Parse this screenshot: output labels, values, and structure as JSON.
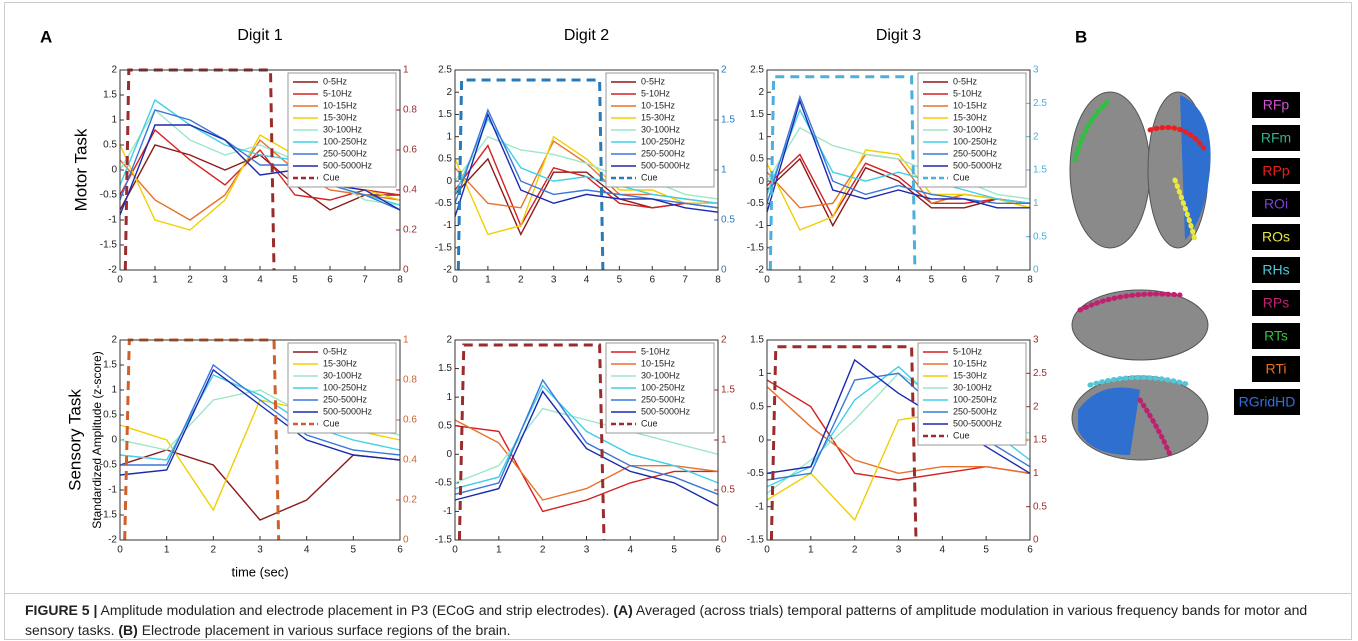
{
  "panel_labels": {
    "a": "A",
    "b": "B"
  },
  "row_labels": {
    "motor": "Motor Task",
    "sensory": "Sensory Task"
  },
  "chart_data": [
    {
      "type": "line",
      "title": "Digit 1",
      "x": [
        0,
        1,
        2,
        3,
        4,
        5,
        6,
        7,
        8
      ],
      "xlim": [
        0,
        8
      ],
      "xticks": [
        0,
        1,
        2,
        3,
        4,
        5,
        6,
        7,
        8
      ],
      "ylim": [
        -2,
        2
      ],
      "yticks": [
        -2,
        -1.5,
        -1,
        -0.5,
        0,
        0.5,
        1,
        1.5,
        2
      ],
      "y2lim": [
        0,
        1
      ],
      "y2ticks": [
        0,
        0.2,
        0.4,
        0.6,
        0.8,
        1
      ],
      "y2color": "#9b2c2c",
      "grid": false,
      "series": [
        {
          "name": "0-5Hz",
          "color": "#8b1a1a",
          "values": [
            -0.8,
            0.5,
            0.3,
            0,
            0.3,
            -0.3,
            -0.8,
            -0.5,
            -0.5
          ]
        },
        {
          "name": "5-10Hz",
          "color": "#d62020",
          "values": [
            -0.5,
            0.8,
            0.2,
            -0.3,
            0.4,
            -0.5,
            -0.6,
            -0.4,
            -0.5
          ]
        },
        {
          "name": "10-15Hz",
          "color": "#e8702a",
          "values": [
            0.2,
            -0.6,
            -1.0,
            -0.5,
            0.6,
            0,
            -0.4,
            -0.5,
            -0.6
          ]
        },
        {
          "name": "15-30Hz",
          "color": "#f0d000",
          "values": [
            0.5,
            -1.0,
            -1.2,
            -0.6,
            0.7,
            0.3,
            -0.3,
            -0.4,
            -0.6
          ]
        },
        {
          "name": "30-100Hz",
          "color": "#9ee6c8",
          "values": [
            0,
            1.2,
            0.6,
            0.3,
            0.5,
            0.2,
            -0.2,
            -0.6,
            -0.7
          ]
        },
        {
          "name": "100-250Hz",
          "color": "#40d0e8",
          "values": [
            -0.3,
            1.4,
            0.9,
            0.5,
            0.3,
            0.2,
            -0.3,
            -0.5,
            -0.7
          ]
        },
        {
          "name": "250-500Hz",
          "color": "#3a78d8",
          "values": [
            -0.6,
            1.2,
            1.0,
            0.6,
            0.1,
            0.1,
            -0.3,
            -0.5,
            -0.8
          ]
        },
        {
          "name": "500-5000Hz",
          "color": "#1a2ab0",
          "values": [
            -0.9,
            0.9,
            0.9,
            0.6,
            -0.1,
            0,
            -0.3,
            -0.4,
            -0.8
          ]
        },
        {
          "name": "Cue",
          "color": "#9b2c2c",
          "axis": "y2",
          "dashed": true,
          "x": [
            0.15,
            0.25,
            4.3,
            4.4
          ],
          "values": [
            0,
            1,
            1,
            0
          ]
        }
      ]
    },
    {
      "type": "line",
      "title": "Digit 2",
      "x": [
        0,
        1,
        2,
        3,
        4,
        5,
        6,
        7,
        8
      ],
      "xlim": [
        0,
        8
      ],
      "xticks": [
        0,
        1,
        2,
        3,
        4,
        5,
        6,
        7,
        8
      ],
      "ylim": [
        -2,
        2.5
      ],
      "yticks": [
        -2,
        -1.5,
        -1,
        -0.5,
        0,
        0.5,
        1,
        1.5,
        2,
        2.5
      ],
      "y2lim": [
        0,
        2
      ],
      "y2ticks": [
        0,
        0.5,
        1,
        1.5,
        2
      ],
      "y2color": "#2a7ab8",
      "grid": false,
      "series": [
        {
          "name": "0-5Hz",
          "color": "#8b1a1a",
          "values": [
            -0.3,
            0.5,
            -1.2,
            0.2,
            0.2,
            -0.4,
            -0.6,
            -0.5,
            -0.6
          ]
        },
        {
          "name": "5-10Hz",
          "color": "#d62020",
          "values": [
            -0.2,
            0.8,
            -1.0,
            0.3,
            0.1,
            -0.5,
            -0.6,
            -0.5,
            -0.5
          ]
        },
        {
          "name": "10-15Hz",
          "color": "#e8702a",
          "values": [
            0.3,
            -0.5,
            -0.6,
            0.9,
            0.4,
            -0.3,
            -0.3,
            -0.4,
            -0.5
          ]
        },
        {
          "name": "15-30Hz",
          "color": "#f0d000",
          "values": [
            0.5,
            -1.2,
            -1.0,
            1.0,
            0.5,
            -0.2,
            -0.2,
            -0.5,
            -0.5
          ]
        },
        {
          "name": "30-100Hz",
          "color": "#9ee6c8",
          "values": [
            0,
            1.0,
            0.7,
            0.6,
            0.4,
            0.1,
            0,
            -0.3,
            -0.4
          ]
        },
        {
          "name": "100-250Hz",
          "color": "#40d0e8",
          "values": [
            -0.3,
            1.4,
            0.3,
            0,
            0.1,
            -0.1,
            -0.3,
            -0.4,
            -0.5
          ]
        },
        {
          "name": "250-500Hz",
          "color": "#3a78d8",
          "values": [
            -0.5,
            1.6,
            0,
            -0.3,
            -0.2,
            -0.3,
            -0.4,
            -0.5,
            -0.6
          ]
        },
        {
          "name": "500-5000Hz",
          "color": "#1a2ab0",
          "values": [
            -0.8,
            1.5,
            -0.2,
            -0.5,
            -0.3,
            -0.4,
            -0.4,
            -0.6,
            -0.7
          ]
        },
        {
          "name": "Cue",
          "color": "#2a7ab8",
          "axis": "y2",
          "dashed": true,
          "x": [
            0.1,
            0.2,
            4.4,
            4.5
          ],
          "values": [
            0,
            1.9,
            1.9,
            0
          ]
        }
      ]
    },
    {
      "type": "line",
      "title": "Digit 3",
      "x": [
        0,
        1,
        2,
        3,
        4,
        5,
        6,
        7,
        8
      ],
      "xlim": [
        0,
        8
      ],
      "xticks": [
        0,
        1,
        2,
        3,
        4,
        5,
        6,
        7,
        8
      ],
      "ylim": [
        -2,
        2.5
      ],
      "yticks": [
        -2,
        -1.5,
        -1,
        -0.5,
        0,
        0.5,
        1,
        1.5,
        2,
        2.5
      ],
      "y2lim": [
        0,
        3
      ],
      "y2ticks": [
        0,
        0.5,
        1,
        1.5,
        2,
        2.5,
        3
      ],
      "y2color": "#4ab0e0",
      "grid": false,
      "series": [
        {
          "name": "0-5Hz",
          "color": "#8b1a1a",
          "values": [
            -0.2,
            0.5,
            -1.0,
            0.3,
            0,
            -0.6,
            -0.6,
            -0.4,
            -0.5
          ]
        },
        {
          "name": "5-10Hz",
          "color": "#d62020",
          "values": [
            -0.1,
            0.6,
            -0.8,
            0.4,
            0.1,
            -0.5,
            -0.5,
            -0.4,
            -0.5
          ]
        },
        {
          "name": "10-15Hz",
          "color": "#e8702a",
          "values": [
            0.2,
            -0.6,
            -0.5,
            0.6,
            0.5,
            -0.5,
            -0.3,
            -0.4,
            -0.6
          ]
        },
        {
          "name": "15-30Hz",
          "color": "#f0d000",
          "values": [
            0.4,
            -1.1,
            -0.8,
            0.7,
            0.6,
            -0.3,
            -0.3,
            -0.4,
            -0.6
          ]
        },
        {
          "name": "30-100Hz",
          "color": "#9ee6c8",
          "values": [
            0,
            1.2,
            0.8,
            0.6,
            0.5,
            0.2,
            0,
            -0.3,
            -0.4
          ]
        },
        {
          "name": "100-250Hz",
          "color": "#40d0e8",
          "values": [
            -0.3,
            1.6,
            0.2,
            0,
            0.2,
            0,
            -0.2,
            -0.4,
            -0.5
          ]
        },
        {
          "name": "250-500Hz",
          "color": "#3a78d8",
          "values": [
            -0.5,
            1.9,
            0,
            -0.3,
            -0.1,
            -0.3,
            -0.4,
            -0.5,
            -0.5
          ]
        },
        {
          "name": "500-5000Hz",
          "color": "#1a2ab0",
          "values": [
            -0.7,
            1.8,
            -0.2,
            -0.4,
            -0.2,
            -0.4,
            -0.4,
            -0.6,
            -0.6
          ]
        },
        {
          "name": "Cue",
          "color": "#4ab0e0",
          "axis": "y2",
          "dashed": true,
          "x": [
            0.1,
            0.2,
            4.4,
            4.5
          ],
          "values": [
            0,
            2.9,
            2.9,
            0
          ]
        }
      ]
    },
    {
      "type": "line",
      "ylabel": "Standardized Amplitude (z-score)",
      "xlabel": "time (sec)",
      "x": [
        0,
        1,
        2,
        3,
        4,
        5,
        6
      ],
      "xlim": [
        0,
        6
      ],
      "xticks": [
        0,
        1,
        2,
        3,
        4,
        5,
        6
      ],
      "ylim": [
        -2,
        2
      ],
      "yticks": [
        -2,
        -1.5,
        -1,
        -0.5,
        0,
        0.5,
        1,
        1.5,
        2
      ],
      "y2lim": [
        0,
        1
      ],
      "y2ticks": [
        0,
        0.2,
        0.4,
        0.6,
        0.8,
        1
      ],
      "y2color": "#d0602a",
      "grid": false,
      "series": [
        {
          "name": "0-5Hz",
          "color": "#8b1a1a",
          "values": [
            -0.5,
            -0.2,
            -0.5,
            -1.6,
            -1.2,
            -0.3,
            -0.4
          ]
        },
        {
          "name": "15-30Hz",
          "color": "#f0d000",
          "values": [
            0.3,
            0,
            -1.4,
            0.8,
            0.6,
            0.2,
            0
          ]
        },
        {
          "name": "30-100Hz",
          "color": "#9ee6c8",
          "values": [
            0,
            -0.2,
            0.8,
            1.0,
            0.5,
            0.3,
            0.1
          ]
        },
        {
          "name": "100-250Hz",
          "color": "#40d0e8",
          "values": [
            -0.3,
            -0.4,
            1.3,
            0.9,
            0.3,
            0,
            -0.2
          ]
        },
        {
          "name": "250-500Hz",
          "color": "#3a78d8",
          "values": [
            -0.5,
            -0.5,
            1.5,
            0.8,
            0.1,
            -0.2,
            -0.3
          ]
        },
        {
          "name": "500-5000Hz",
          "color": "#1a2ab0",
          "values": [
            -0.7,
            -0.6,
            1.4,
            0.7,
            0,
            -0.3,
            -0.4
          ]
        },
        {
          "name": "Cue",
          "color": "#d0602a",
          "axis": "y2",
          "dashed": true,
          "x": [
            0.1,
            0.2,
            3.3,
            3.4
          ],
          "values": [
            0,
            1,
            1,
            0
          ]
        }
      ]
    },
    {
      "type": "line",
      "x": [
        0,
        1,
        2,
        3,
        4,
        5,
        6
      ],
      "xlim": [
        0,
        6
      ],
      "xticks": [
        0,
        1,
        2,
        3,
        4,
        5,
        6
      ],
      "ylim": [
        -1.5,
        2
      ],
      "yticks": [
        -1.5,
        -1,
        -0.5,
        0,
        0.5,
        1,
        1.5,
        2
      ],
      "y2lim": [
        0,
        2
      ],
      "y2ticks": [
        0,
        0.5,
        1,
        1.5,
        2
      ],
      "y2color": "#9b2c2c",
      "grid": false,
      "series": [
        {
          "name": "5-10Hz",
          "color": "#d62020",
          "values": [
            0.5,
            0.4,
            -1.0,
            -0.8,
            -0.5,
            -0.3,
            -0.3
          ]
        },
        {
          "name": "10-15Hz",
          "color": "#e8702a",
          "values": [
            0.6,
            0.2,
            -0.8,
            -0.6,
            -0.2,
            -0.2,
            -0.3
          ]
        },
        {
          "name": "30-100Hz",
          "color": "#9ee6c8",
          "values": [
            -0.5,
            -0.2,
            0.8,
            0.6,
            0.4,
            0.2,
            0
          ]
        },
        {
          "name": "100-250Hz",
          "color": "#40d0e8",
          "values": [
            -0.6,
            -0.4,
            1.2,
            0.4,
            0,
            -0.2,
            -0.5
          ]
        },
        {
          "name": "250-500Hz",
          "color": "#3a78d8",
          "values": [
            -0.7,
            -0.5,
            1.3,
            0.2,
            -0.2,
            -0.4,
            -0.7
          ]
        },
        {
          "name": "500-5000Hz",
          "color": "#1a2ab0",
          "values": [
            -0.8,
            -0.6,
            1.1,
            0.1,
            -0.3,
            -0.5,
            -0.9
          ]
        },
        {
          "name": "Cue",
          "color": "#9b2c2c",
          "axis": "y2",
          "dashed": true,
          "x": [
            0.1,
            0.2,
            3.3,
            3.4
          ],
          "values": [
            0,
            1.95,
            1.95,
            0
          ]
        }
      ]
    },
    {
      "type": "line",
      "x": [
        0,
        1,
        2,
        3,
        4,
        5,
        6
      ],
      "xlim": [
        0,
        6
      ],
      "xticks": [
        0,
        1,
        2,
        3,
        4,
        5,
        6
      ],
      "ylim": [
        -1.5,
        1.5
      ],
      "yticks": [
        -1.5,
        -1,
        -0.5,
        0,
        0.5,
        1,
        1.5
      ],
      "y2lim": [
        0,
        3
      ],
      "y2ticks": [
        0,
        0.5,
        1,
        1.5,
        2,
        2.5,
        3
      ],
      "y2color": "#9b2c2c",
      "grid": false,
      "series": [
        {
          "name": "5-10Hz",
          "color": "#d62020",
          "values": [
            0.9,
            0.5,
            -0.5,
            -0.6,
            -0.5,
            -0.4,
            -0.5
          ]
        },
        {
          "name": "10-15Hz",
          "color": "#e8702a",
          "values": [
            0.8,
            0.2,
            -0.3,
            -0.5,
            -0.4,
            -0.4,
            -0.5
          ]
        },
        {
          "name": "15-30Hz",
          "color": "#f0d000",
          "values": [
            -0.9,
            -0.5,
            -1.2,
            0.3,
            0.4,
            0.2,
            0
          ]
        },
        {
          "name": "30-100Hz",
          "color": "#9ee6c8",
          "values": [
            -0.8,
            -0.3,
            0.3,
            1.0,
            0.6,
            0.3,
            0.1
          ]
        },
        {
          "name": "100-250Hz",
          "color": "#40d0e8",
          "values": [
            -0.7,
            -0.4,
            0.6,
            1.1,
            0.5,
            0.2,
            -0.3
          ]
        },
        {
          "name": "250-500Hz",
          "color": "#3a78d8",
          "values": [
            -0.6,
            -0.5,
            0.9,
            1.0,
            0.4,
            0,
            -0.4
          ]
        },
        {
          "name": "500-5000Hz",
          "color": "#1a2ab0",
          "values": [
            -0.5,
            -0.4,
            1.2,
            0.7,
            0.3,
            -0.1,
            -0.5
          ]
        },
        {
          "name": "Cue",
          "color": "#9b2c2c",
          "axis": "y2",
          "dashed": true,
          "x": [
            0.1,
            0.2,
            3.3,
            3.4
          ],
          "values": [
            0,
            2.9,
            2.9,
            0
          ]
        }
      ]
    }
  ],
  "region_legend": [
    {
      "label": "RFp",
      "color": "#d050d0"
    },
    {
      "label": "RFm",
      "color": "#30b090"
    },
    {
      "label": "RPp",
      "color": "#e82020"
    },
    {
      "label": "ROi",
      "color": "#8040e0"
    },
    {
      "label": "ROs",
      "color": "#e8e840"
    },
    {
      "label": "RHs",
      "color": "#50c8d8"
    },
    {
      "label": "RPs",
      "color": "#c02070"
    },
    {
      "label": "RTs",
      "color": "#30c040"
    },
    {
      "label": "RTi",
      "color": "#e87020"
    },
    {
      "label": "RGridHD",
      "color": "#3070e0"
    }
  ],
  "caption": {
    "label": "FIGURE 5 |",
    "text1": " Amplitude modulation and electrode placement in P3 (ECoG and strip electrodes). ",
    "a": "(A)",
    "text2": " Averaged (across trials) temporal patterns of amplitude modulation in various frequency bands for motor and sensory tasks. ",
    "b": "(B)",
    "text3": " Electrode placement in various surface regions of the brain."
  }
}
